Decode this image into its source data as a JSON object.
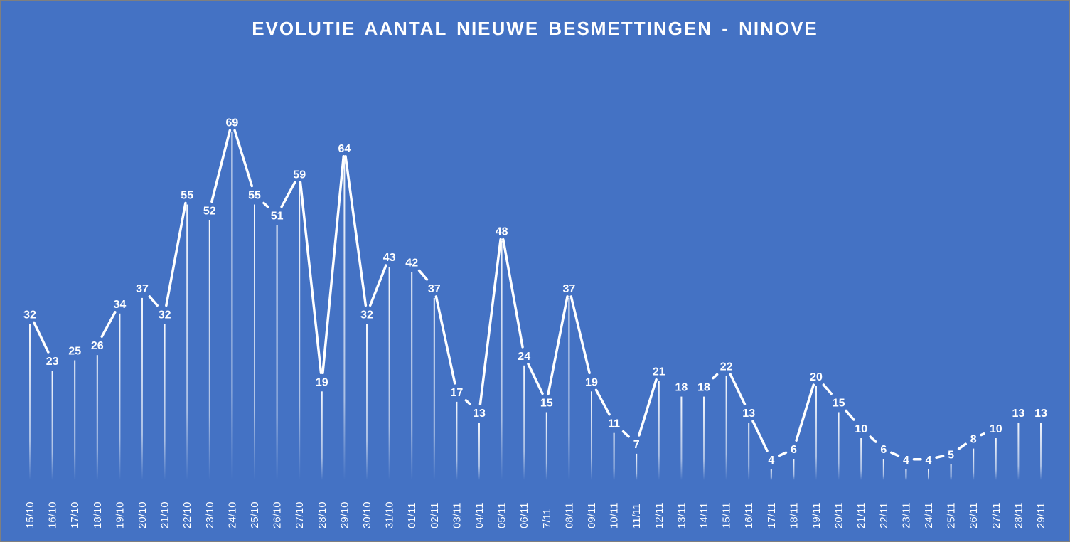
{
  "chart_data": {
    "type": "line",
    "title": "EVOLUTIE AANTAL NIEUWE BESMETTINGEN - NINOVE",
    "xlabel": "",
    "ylabel": "",
    "ylim": [
      0,
      75
    ],
    "grid": false,
    "legend": "none",
    "categories": [
      "15/10",
      "16/10",
      "17/10",
      "18/10",
      "19/10",
      "20/10",
      "21/10",
      "22/10",
      "23/10",
      "24/10",
      "25/10",
      "26/10",
      "27/10",
      "28/10",
      "29/10",
      "30/10",
      "31/10",
      "01/11",
      "02/11",
      "03/11",
      "04/11",
      "05/11",
      "06/11",
      "7/11",
      "08/11",
      "09/11",
      "10/11",
      "11/11",
      "12/11",
      "13/11",
      "14/11",
      "15/11",
      "16/11",
      "17/11",
      "18/11",
      "19/11",
      "20/11",
      "21/11",
      "22/11",
      "23/11",
      "24/11",
      "25/11",
      "26/11",
      "27/11",
      "28/11",
      "29/11"
    ],
    "series": [
      {
        "values": [
          32,
          23,
          25,
          26,
          34,
          37,
          32,
          55,
          52,
          69,
          55,
          51,
          59,
          19,
          64,
          32,
          43,
          42,
          37,
          17,
          13,
          48,
          24,
          15,
          37,
          19,
          11,
          7,
          21,
          18,
          18,
          22,
          13,
          4,
          6,
          20,
          15,
          10,
          6,
          4,
          4,
          5,
          8,
          10,
          13,
          13
        ]
      }
    ],
    "colors": {
      "background": "#4472C4",
      "line": "#FFFFFF",
      "text": "#FFFFFF"
    }
  }
}
